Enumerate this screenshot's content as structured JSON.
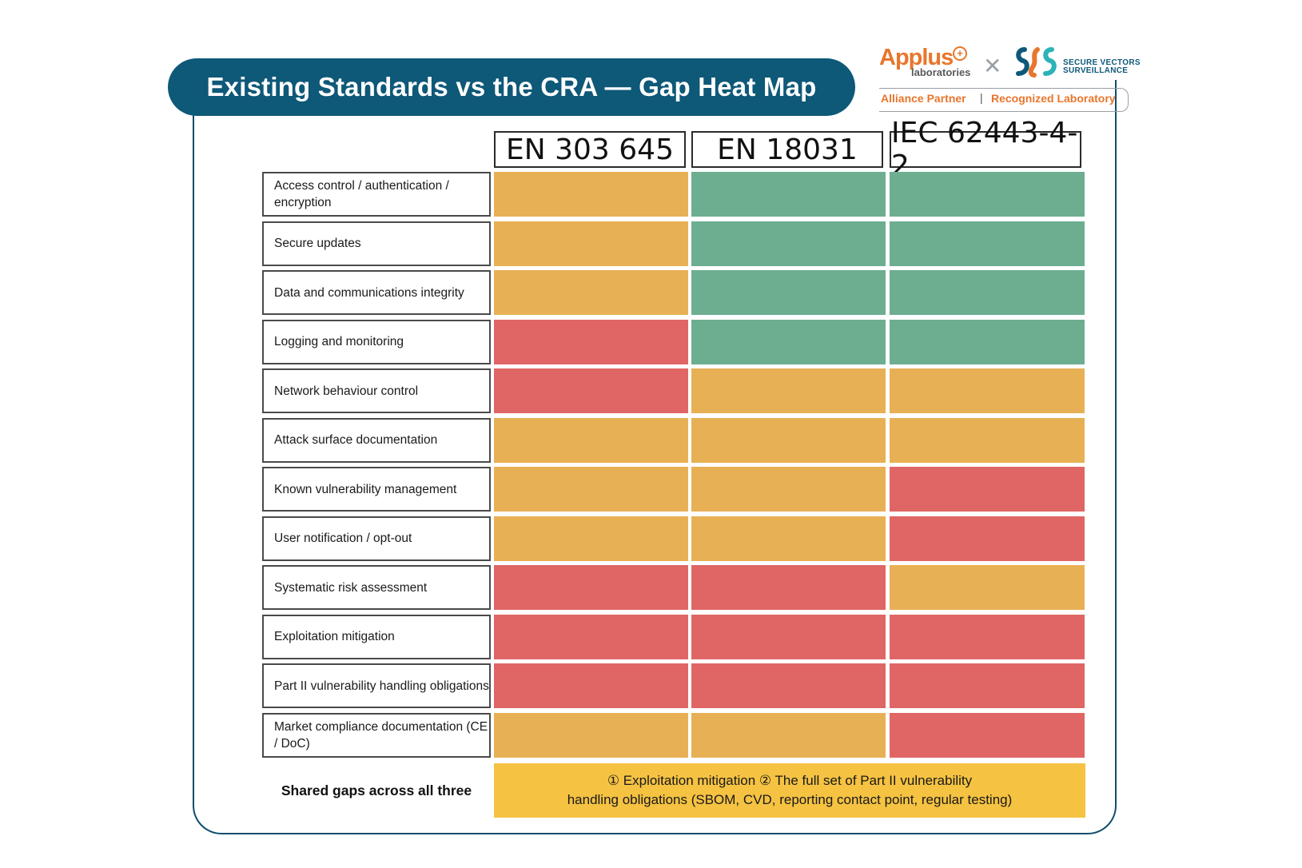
{
  "title": "Existing Standards vs the CRA — Gap Heat Map",
  "logos": {
    "applus": "Applus",
    "applus_sub": "laboratories",
    "svs_line1": "SECURE VECTORS",
    "svs_line2": "SURVEILLANCE",
    "badge_left": "Alliance Partner",
    "badge_sep": "|",
    "badge_right": "Recognized Laboratory"
  },
  "colors": {
    "high": "#e06666",
    "partial": "#e8b055",
    "covered": "#6dae91",
    "shared": "#f5c242",
    "title_bg": "#0e5878"
  },
  "chart_data": {
    "type": "heatmap",
    "columns": [
      "EN 303 645",
      "EN 18031",
      "IEC 62443-4-2"
    ],
    "rows": [
      "Access control / authentication / encryption",
      "Secure updates",
      "Data and communications integrity",
      "Logging and monitoring",
      "Network behaviour control",
      "Attack surface documentation",
      "Known vulnerability management",
      "User notification / opt-out",
      "Systematic risk assessment",
      "Exploitation mitigation",
      "Part II vulnerability handling obligations",
      "Market compliance documentation (CE / DoC)"
    ],
    "levels": [
      [
        "partial",
        "covered",
        "covered"
      ],
      [
        "partial",
        "covered",
        "covered"
      ],
      [
        "partial",
        "covered",
        "covered"
      ],
      [
        "high",
        "covered",
        "covered"
      ],
      [
        "high",
        "partial",
        "partial"
      ],
      [
        "partial",
        "partial",
        "partial"
      ],
      [
        "partial",
        "partial",
        "high"
      ],
      [
        "partial",
        "partial",
        "high"
      ],
      [
        "high",
        "high",
        "partial"
      ],
      [
        "high",
        "high",
        "high"
      ],
      [
        "high",
        "high",
        "high"
      ],
      [
        "partial",
        "partial",
        "high"
      ]
    ],
    "shared_label": "Shared gaps across all three",
    "shared_text_line1": "① Exploitation mitigation ② The full set of Part II vulnerability",
    "shared_text_line2": "handling obligations (SBOM, CVD, reporting contact point, regular testing)"
  }
}
